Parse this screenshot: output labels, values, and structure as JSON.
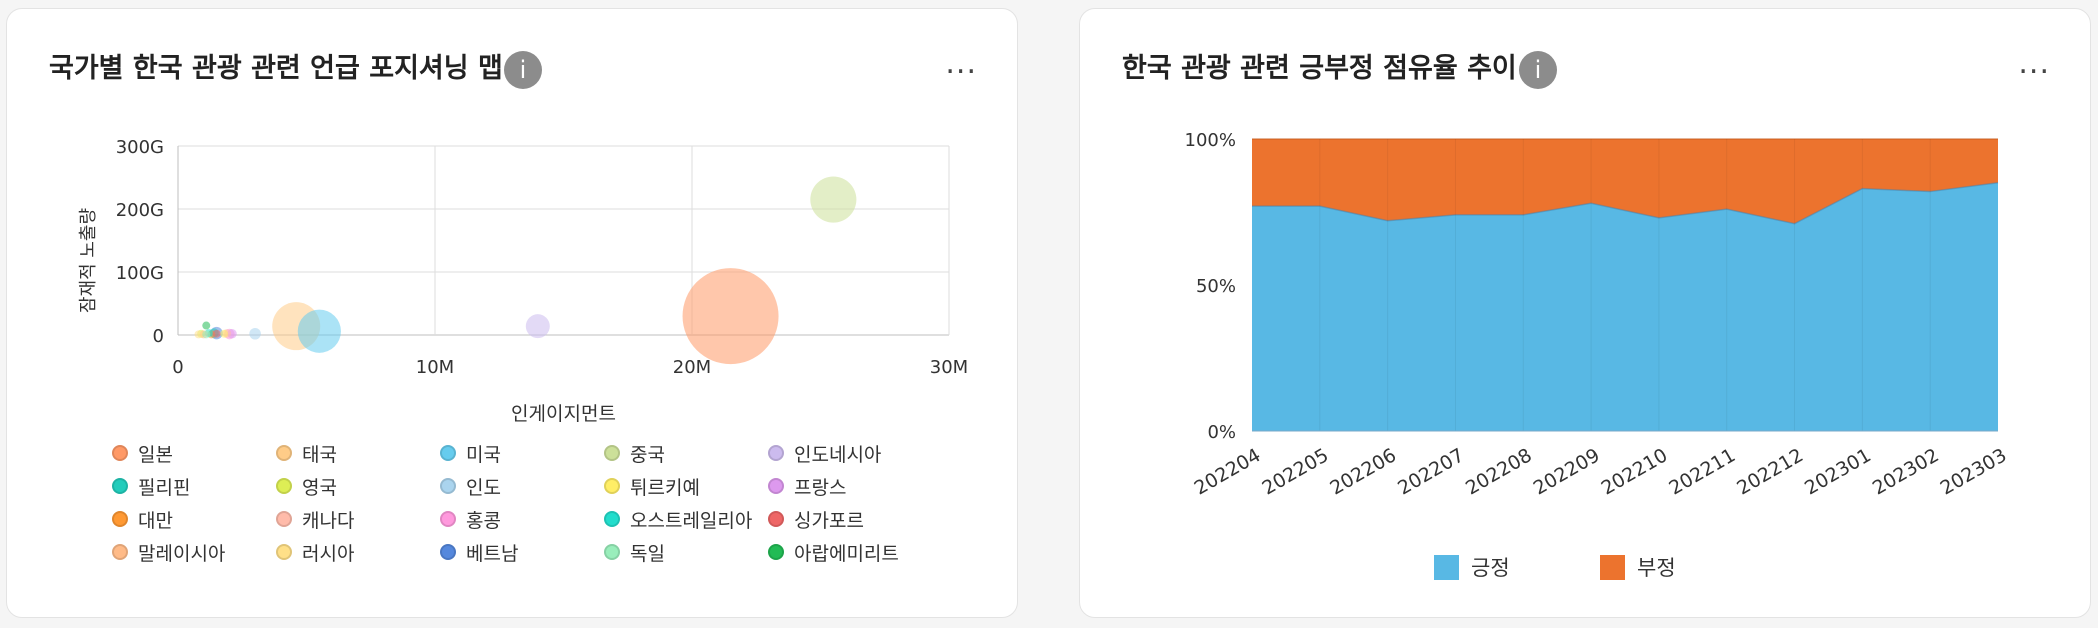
{
  "card1": {
    "title": "국가별 한국 관광 관련 언급 포지셔닝 맵",
    "info_icon": "i",
    "more_icon": "...",
    "chart_data": {
      "type": "scatter",
      "xlabel": "인게이지먼트",
      "ylabel": "잠재적 노출량",
      "xlim": [
        0,
        30000000
      ],
      "ylim": [
        0,
        300000000000
      ],
      "x_ticks": [
        "0",
        "10M",
        "20M",
        "30M"
      ],
      "y_ticks": [
        "0",
        "100G",
        "200G",
        "300G"
      ],
      "grid": true,
      "legend_position": "bottom",
      "series": [
        {
          "name": "일본",
          "color": "#ff9966",
          "x": 21500000,
          "y": 30000000000,
          "size": 1.0
        },
        {
          "name": "태국",
          "color": "#ffcc88",
          "x": 4600000,
          "y": 14000000000,
          "size": 0.5
        },
        {
          "name": "미국",
          "color": "#66ccee",
          "x": 5500000,
          "y": 6000000000,
          "size": 0.45
        },
        {
          "name": "중국",
          "color": "#cce099",
          "x": 25500000,
          "y": 215000000000,
          "size": 0.48
        },
        {
          "name": "인도네시아",
          "color": "#ccbbee",
          "x": 14000000,
          "y": 14000000000,
          "size": 0.25
        },
        {
          "name": "필리핀",
          "color": "#22ccbb",
          "x": 1400000,
          "y": 3000000000,
          "size": 0.1
        },
        {
          "name": "영국",
          "color": "#ddee55",
          "x": 900000,
          "y": 2000000000,
          "size": 0.08
        },
        {
          "name": "인도",
          "color": "#aad4ee",
          "x": 3000000,
          "y": 2000000000,
          "size": 0.12
        },
        {
          "name": "튀르키예",
          "color": "#ffee66",
          "x": 1800000,
          "y": 2000000000,
          "size": 0.08
        },
        {
          "name": "프랑스",
          "color": "#dd99ee",
          "x": 2100000,
          "y": 2000000000,
          "size": 0.1
        },
        {
          "name": "대만",
          "color": "#ff9933",
          "x": 1300000,
          "y": 1000000000,
          "size": 0.08
        },
        {
          "name": "캐나다",
          "color": "#ffbbaa",
          "x": 1900000,
          "y": 2500000000,
          "size": 0.09
        },
        {
          "name": "홍콩",
          "color": "#ff99dd",
          "x": 2000000,
          "y": 1500000000,
          "size": 0.11
        },
        {
          "name": "오스트레일리아",
          "color": "#22ddcc",
          "x": 1200000,
          "y": 3000000000,
          "size": 0.08
        },
        {
          "name": "싱가포르",
          "color": "#ee6666",
          "x": 1500000,
          "y": 2000000000,
          "size": 0.08
        },
        {
          "name": "말레이시아",
          "color": "#ffbb88",
          "x": 1000000,
          "y": 1000000000,
          "size": 0.07
        },
        {
          "name": "러시아",
          "color": "#ffe088",
          "x": 800000,
          "y": 1000000000,
          "size": 0.06
        },
        {
          "name": "베트남",
          "color": "#5588dd",
          "x": 1500000,
          "y": 3000000000,
          "size": 0.13
        },
        {
          "name": "독일",
          "color": "#99eebb",
          "x": 1100000,
          "y": 1000000000,
          "size": 0.06
        },
        {
          "name": "아랍에미리트",
          "color": "#22bb55",
          "x": 1100000,
          "y": 15000000000,
          "size": 0.06
        }
      ]
    }
  },
  "card2": {
    "title": "한국 관광 관련 긍부정 점유율 추이",
    "info_icon": "i",
    "more_icon": "...",
    "chart_data": {
      "type": "area",
      "stacked": "percent",
      "categories": [
        "202204",
        "202205",
        "202206",
        "202207",
        "202208",
        "202209",
        "202210",
        "202211",
        "202212",
        "202301",
        "202302",
        "202303"
      ],
      "y_ticks": [
        "0%",
        "50%",
        "100%"
      ],
      "ylim": [
        0,
        100
      ],
      "legend_position": "bottom",
      "series": [
        {
          "name": "긍정",
          "color": "#58b8e4",
          "values": [
            77,
            77,
            72,
            74,
            74,
            78,
            73,
            76,
            71,
            83,
            82,
            85
          ]
        },
        {
          "name": "부정",
          "color": "#ec732e",
          "values": [
            23,
            23,
            28,
            26,
            26,
            22,
            27,
            24,
            29,
            17,
            18,
            15
          ]
        }
      ]
    }
  }
}
